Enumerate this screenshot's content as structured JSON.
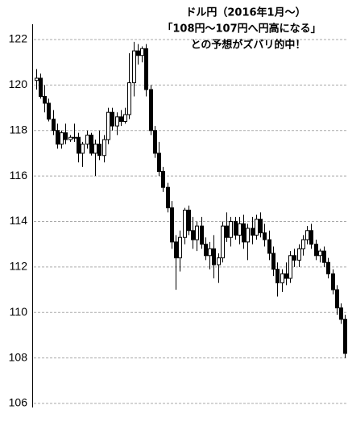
{
  "chart_data": {
    "type": "candlestick",
    "title_lines": [
      "ドル円（2016年1月～）",
      "「108円～107円へ円高になる」",
      "との予想がズバリ的中！"
    ],
    "open": [
      120.2,
      120.3,
      119.5,
      119.2,
      118.5,
      118.0,
      117.4,
      117.9,
      117.6,
      117.7,
      117.7,
      117.0,
      117.4,
      117.8,
      117.0,
      117.4,
      116.9,
      117.6,
      118.8,
      118.2,
      118.6,
      118.4,
      118.7,
      120.1,
      121.5,
      121.3,
      121.6,
      119.8,
      118.0,
      117.0,
      116.2,
      115.5,
      114.6,
      113.1,
      112.4,
      113.3,
      114.5,
      113.6,
      113.2,
      113.8,
      113.0,
      112.5,
      112.8,
      112.1,
      112.4,
      113.8,
      113.3,
      114.0,
      113.4,
      113.9,
      113.1,
      113.7,
      113.4,
      114.1,
      113.5,
      113.2,
      112.6,
      111.9,
      111.3,
      111.7,
      111.5,
      112.5,
      112.3,
      112.8,
      113.2,
      113.6,
      113.0,
      112.5,
      112.7,
      112.2,
      111.7,
      111.0,
      110.2,
      109.7
    ],
    "high": [
      120.7,
      120.5,
      120.0,
      119.4,
      118.9,
      118.3,
      118.0,
      118.3,
      117.8,
      118.3,
      117.9,
      117.5,
      118.0,
      117.9,
      117.6,
      118.0,
      117.8,
      119.0,
      119.0,
      118.8,
      118.9,
      119.0,
      121.4,
      121.9,
      121.8,
      121.7,
      121.8,
      120.0,
      118.2,
      117.5,
      116.4,
      115.7,
      114.9,
      113.4,
      113.6,
      114.6,
      114.7,
      114.2,
      114.0,
      114.2,
      113.3,
      113.1,
      113.4,
      112.6,
      114.0,
      114.4,
      114.2,
      114.2,
      114.2,
      114.3,
      113.9,
      114.2,
      114.3,
      114.4,
      113.9,
      113.6,
      112.9,
      112.2,
      111.9,
      112.2,
      112.7,
      112.8,
      113.0,
      113.4,
      113.8,
      113.9,
      113.2,
      112.8,
      112.9,
      112.4,
      111.9,
      111.2,
      110.4,
      109.9
    ],
    "low": [
      119.8,
      119.4,
      118.8,
      118.4,
      117.8,
      117.2,
      117.2,
      117.4,
      117.5,
      117.5,
      116.6,
      116.4,
      117.2,
      116.9,
      116.0,
      116.7,
      116.6,
      117.4,
      118.0,
      117.8,
      118.2,
      118.3,
      118.5,
      119.5,
      120.9,
      121.0,
      119.5,
      117.8,
      116.8,
      116.0,
      115.3,
      114.4,
      112.8,
      111.0,
      111.8,
      113.0,
      113.4,
      112.8,
      112.7,
      112.8,
      112.3,
      111.9,
      111.5,
      111.3,
      112.2,
      113.1,
      112.9,
      113.2,
      113.0,
      112.8,
      112.3,
      113.0,
      113.2,
      113.3,
      112.9,
      112.3,
      111.6,
      110.7,
      110.9,
      111.2,
      111.3,
      112.0,
      112.0,
      112.5,
      113.0,
      112.8,
      112.3,
      112.2,
      112.0,
      111.5,
      110.8,
      109.9,
      109.5,
      108.0
    ],
    "close": [
      120.3,
      119.5,
      119.2,
      118.5,
      118.0,
      117.4,
      117.9,
      117.6,
      117.7,
      117.7,
      117.0,
      117.4,
      117.8,
      117.0,
      117.4,
      116.9,
      117.6,
      118.8,
      118.2,
      118.6,
      118.4,
      118.7,
      120.1,
      121.5,
      121.3,
      121.6,
      119.8,
      118.0,
      117.0,
      116.2,
      115.5,
      114.6,
      113.1,
      112.4,
      113.3,
      114.5,
      113.6,
      113.2,
      113.8,
      113.0,
      112.5,
      112.8,
      112.1,
      112.4,
      113.8,
      113.3,
      114.0,
      113.4,
      113.9,
      113.1,
      113.7,
      113.4,
      114.1,
      113.5,
      113.2,
      112.6,
      111.9,
      111.3,
      111.7,
      111.5,
      112.5,
      112.3,
      112.8,
      113.2,
      113.6,
      113.0,
      112.5,
      112.7,
      112.2,
      111.7,
      111.0,
      110.2,
      109.7,
      108.2
    ],
    "up_color": "#ffffff",
    "down_color": "#000000",
    "edge_color": "#000000",
    "ylim": [
      106,
      122
    ],
    "yticks": [
      106,
      108,
      110,
      112,
      114,
      116,
      118,
      120,
      122
    ],
    "grid": true
  }
}
